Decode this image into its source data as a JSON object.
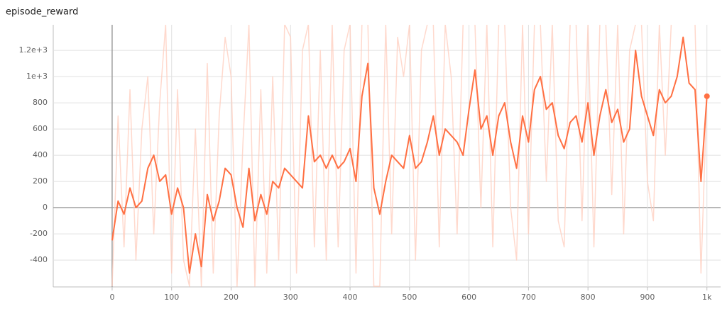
{
  "chart_data": {
    "type": "line",
    "title": "episode_reward",
    "x": [
      0,
      10,
      20,
      30,
      40,
      50,
      60,
      70,
      80,
      90,
      100,
      110,
      120,
      130,
      140,
      150,
      160,
      170,
      180,
      190,
      200,
      210,
      220,
      230,
      240,
      250,
      260,
      270,
      280,
      290,
      300,
      310,
      320,
      330,
      340,
      350,
      360,
      370,
      380,
      390,
      400,
      410,
      420,
      430,
      440,
      450,
      460,
      470,
      480,
      490,
      500,
      510,
      520,
      530,
      540,
      550,
      560,
      570,
      580,
      590,
      600,
      610,
      620,
      630,
      640,
      650,
      660,
      670,
      680,
      690,
      700,
      710,
      720,
      730,
      740,
      750,
      760,
      770,
      780,
      790,
      800,
      810,
      820,
      830,
      840,
      850,
      860,
      870,
      880,
      890,
      900,
      910,
      920,
      930,
      940,
      950,
      960,
      970,
      980,
      990,
      1000
    ],
    "series": [
      {
        "color": "#ffccbc",
        "values": [
          -600,
          700,
          -300,
          900,
          -400,
          600,
          1000,
          -200,
          800,
          1400,
          -500,
          900,
          -400,
          -600,
          600,
          -600,
          1100,
          -500,
          700,
          1300,
          1000,
          -600,
          500,
          1400,
          -600,
          900,
          -500,
          1000,
          -400,
          1400,
          1300,
          -500,
          1200,
          1400,
          -300,
          1200,
          -400,
          1400,
          -300,
          1200,
          1400,
          -500,
          1400,
          1400,
          -600,
          -600,
          1400,
          -200,
          1300,
          1000,
          1400,
          -400,
          1200,
          1400,
          1400,
          -300,
          1400,
          1000,
          -200,
          1400,
          1400,
          1400,
          0,
          1400,
          -300,
          1400,
          1400,
          0,
          -400,
          1400,
          -200,
          1400,
          1400,
          200,
          1400,
          -100,
          -300,
          1400,
          1400,
          -100,
          1400,
          -300,
          1400,
          1400,
          100,
          1400,
          -200,
          1200,
          1400,
          1400,
          200,
          -100,
          1400,
          400,
          1400,
          1400,
          1400,
          1400,
          1400,
          -500,
          850
        ]
      },
      {
        "color": "#ff7043",
        "values": [
          -250,
          50,
          -50,
          150,
          0,
          50,
          300,
          400,
          200,
          250,
          -50,
          150,
          0,
          -500,
          -200,
          -450,
          100,
          -100,
          50,
          300,
          250,
          0,
          -150,
          300,
          -100,
          100,
          -50,
          200,
          150,
          300,
          250,
          200,
          150,
          700,
          350,
          400,
          300,
          400,
          300,
          350,
          450,
          200,
          850,
          1100,
          150,
          -50,
          200,
          400,
          350,
          300,
          550,
          300,
          350,
          500,
          700,
          400,
          600,
          550,
          500,
          400,
          750,
          1050,
          600,
          700,
          400,
          700,
          800,
          500,
          300,
          700,
          500,
          900,
          1000,
          750,
          800,
          550,
          450,
          650,
          700,
          500,
          800,
          400,
          700,
          900,
          650,
          750,
          500,
          600,
          1200,
          850,
          700,
          550,
          900,
          800,
          850,
          1000,
          1300,
          950,
          900,
          200,
          850
        ]
      }
    ],
    "xlim": [
      -99,
      1023
    ],
    "ylim": [
      -605,
      1395
    ],
    "xticks": [
      0,
      100,
      200,
      300,
      400,
      500,
      600,
      700,
      800,
      900,
      {
        "value": 1000,
        "label": "1k"
      }
    ],
    "yticks": [
      -400,
      -200,
      0,
      200,
      400,
      600,
      800,
      {
        "value": 1000,
        "label": "1e+3"
      },
      {
        "value": 1200,
        "label": "1.2e+3"
      }
    ],
    "grid": true
  }
}
